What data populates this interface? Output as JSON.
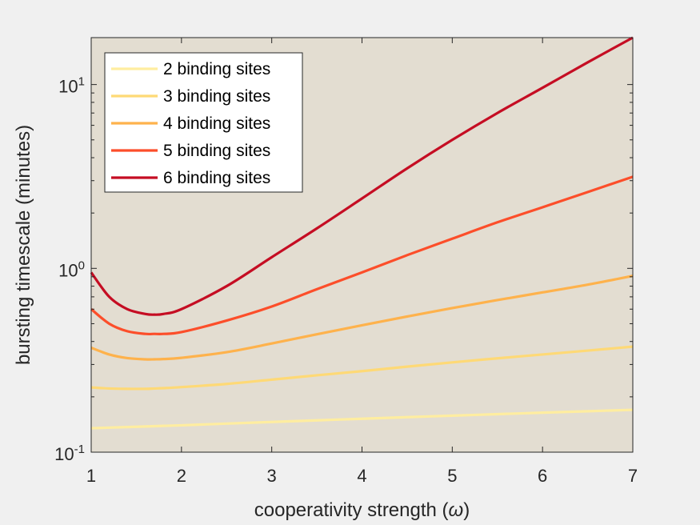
{
  "chart_data": {
    "type": "line",
    "xlabel_prefix": "cooperativity strength (",
    "xlabel_symbol": "ω",
    "xlabel_suffix": ")",
    "ylabel": "bursting timescale (minutes)",
    "yscale": "log",
    "xlim": [
      1,
      7
    ],
    "ylim": [
      0.1,
      18
    ],
    "xticks": [
      1,
      2,
      3,
      4,
      5,
      6,
      7
    ],
    "xtick_labels": [
      "1",
      "2",
      "3",
      "4",
      "5",
      "6",
      "7"
    ],
    "yticks": [
      {
        "value": 0.1,
        "base": "10",
        "exp": "-1"
      },
      {
        "value": 1,
        "base": "10",
        "exp": "0"
      },
      {
        "value": 10,
        "base": "10",
        "exp": "1"
      }
    ],
    "legend_position": "top-left",
    "plot_background": "#e3ddd1",
    "grid": false,
    "x": [
      1.0,
      1.2,
      1.4,
      1.6,
      1.7,
      1.8,
      2.0,
      2.5,
      3.0,
      3.5,
      4.0,
      4.5,
      5.0,
      5.5,
      6.0,
      6.5,
      7.0
    ],
    "series": [
      {
        "name": "2 binding sites",
        "color": "#ffeda0",
        "values": [
          0.135,
          0.136,
          0.137,
          0.138,
          0.1385,
          0.139,
          0.14,
          0.143,
          0.146,
          0.149,
          0.152,
          0.155,
          0.158,
          0.161,
          0.164,
          0.167,
          0.17
        ]
      },
      {
        "name": "3 binding sites",
        "color": "#fed976",
        "values": [
          0.225,
          0.222,
          0.221,
          0.221,
          0.222,
          0.223,
          0.226,
          0.235,
          0.248,
          0.262,
          0.276,
          0.292,
          0.308,
          0.324,
          0.34,
          0.357,
          0.375
        ]
      },
      {
        "name": "4 binding sites",
        "color": "#feb24c",
        "values": [
          0.37,
          0.34,
          0.325,
          0.32,
          0.32,
          0.321,
          0.326,
          0.35,
          0.39,
          0.438,
          0.49,
          0.547,
          0.608,
          0.672,
          0.74,
          0.815,
          0.91
        ]
      },
      {
        "name": "5 binding sites",
        "color": "#fc4e2a",
        "values": [
          0.6,
          0.5,
          0.455,
          0.44,
          0.44,
          0.44,
          0.45,
          0.52,
          0.62,
          0.77,
          0.95,
          1.18,
          1.45,
          1.78,
          2.15,
          2.6,
          3.15
        ]
      },
      {
        "name": "6 binding sites",
        "color": "#c50d23",
        "values": [
          0.95,
          0.7,
          0.6,
          0.565,
          0.56,
          0.565,
          0.6,
          0.8,
          1.15,
          1.65,
          2.4,
          3.5,
          5.0,
          7.0,
          9.6,
          13.2,
          18.0
        ]
      }
    ]
  }
}
